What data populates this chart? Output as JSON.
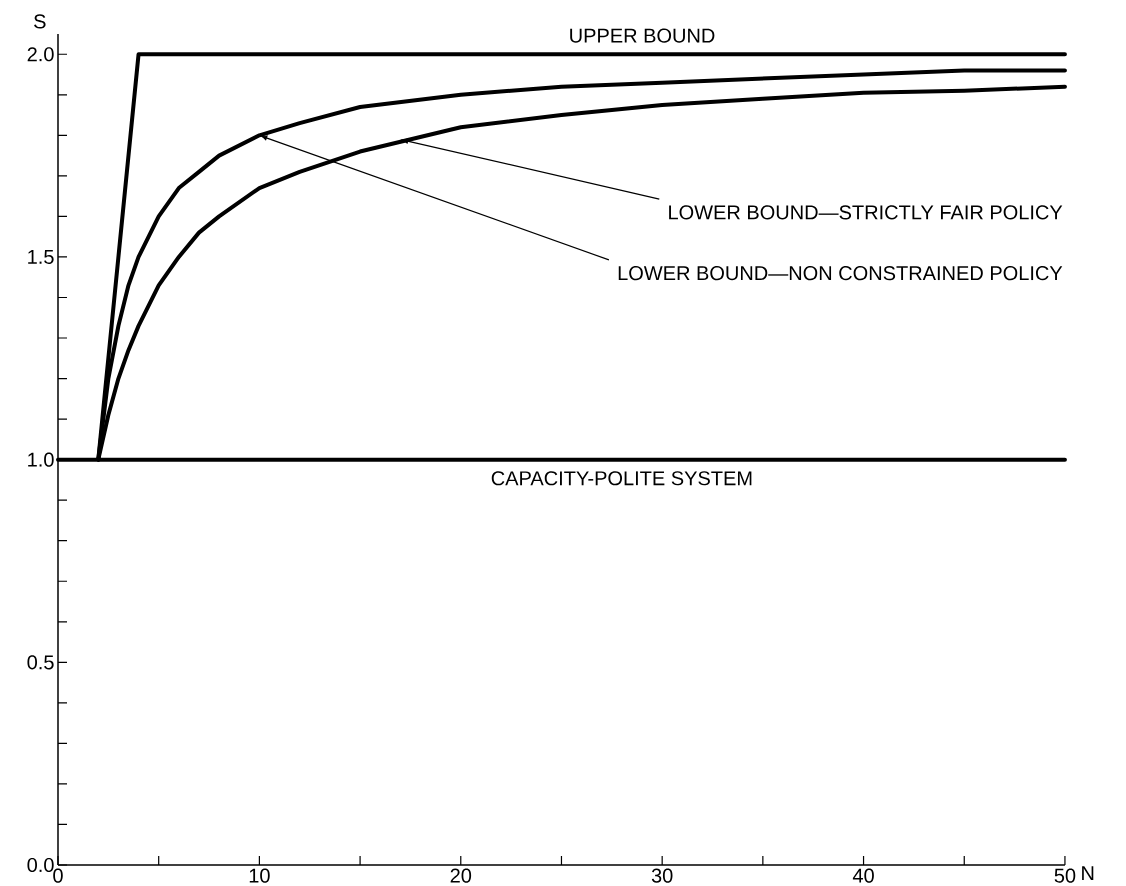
{
  "chart_data": {
    "type": "line",
    "xlabel": "N",
    "ylabel": "S",
    "xlim": [
      0,
      50
    ],
    "ylim": [
      0,
      2.05
    ],
    "xticks": [
      0,
      {
        "value": 5,
        "label": null
      },
      10,
      {
        "value": 15,
        "label": null
      },
      20,
      {
        "value": 25,
        "label": null
      },
      30,
      {
        "value": 35,
        "label": null
      },
      40,
      {
        "value": 45,
        "label": null
      },
      50
    ],
    "yticks": [
      {
        "value": 0,
        "label": "0.0"
      },
      {
        "value": 0.1,
        "label": null
      },
      {
        "value": 0.2,
        "label": null
      },
      {
        "value": 0.3,
        "label": null
      },
      {
        "value": 0.4,
        "label": null
      },
      {
        "value": 0.5,
        "label": "0.5"
      },
      {
        "value": 0.6,
        "label": null
      },
      {
        "value": 0.7,
        "label": null
      },
      {
        "value": 0.8,
        "label": null
      },
      {
        "value": 0.9,
        "label": null
      },
      {
        "value": 1.0,
        "label": "1.0"
      },
      {
        "value": 1.1,
        "label": null
      },
      {
        "value": 1.2,
        "label": null
      },
      {
        "value": 1.3,
        "label": null
      },
      {
        "value": 1.4,
        "label": null
      },
      {
        "value": 1.5,
        "label": "1.5"
      },
      {
        "value": 1.6,
        "label": null
      },
      {
        "value": 1.7,
        "label": null
      },
      {
        "value": 1.8,
        "label": null
      },
      {
        "value": 1.9,
        "label": null
      },
      {
        "value": 2.0,
        "label": "2.0"
      }
    ],
    "line_style": "solid",
    "series": [
      {
        "color": "#000000",
        "x": [
          2,
          4,
          50
        ],
        "values": [
          1.0,
          2.0,
          2.0
        ]
      },
      {
        "color": "#000000",
        "x": [
          2,
          2.5,
          3,
          3.5,
          4,
          5,
          6,
          7,
          8,
          10,
          12,
          15,
          20,
          25,
          30,
          35,
          40,
          45,
          50
        ],
        "values": [
          1.0,
          1.2,
          1.33,
          1.43,
          1.5,
          1.6,
          1.67,
          1.71,
          1.75,
          1.8,
          1.83,
          1.87,
          1.9,
          1.92,
          1.93,
          1.94,
          1.95,
          1.96,
          1.96
        ]
      },
      {
        "color": "#000000",
        "x": [
          2,
          2.5,
          3,
          3.5,
          4,
          5,
          6,
          7,
          8,
          10,
          12,
          15,
          20,
          25,
          30,
          35,
          40,
          45,
          50
        ],
        "values": [
          1.0,
          1.11,
          1.2,
          1.27,
          1.33,
          1.43,
          1.5,
          1.56,
          1.6,
          1.67,
          1.71,
          1.76,
          1.82,
          1.85,
          1.875,
          1.89,
          1.905,
          1.91,
          1.92
        ]
      },
      {
        "color": "#000000",
        "x": [
          0,
          50
        ],
        "values": [
          1.0,
          1.0
        ]
      }
    ],
    "annotations": [
      {
        "text": "UPPER BOUND",
        "x": 29,
        "y": 2.0
      },
      {
        "text": "LOWER BOUND—STRICTLY FAIR POLICY",
        "x": 17,
        "y": 1.79
      },
      {
        "text": "LOWER BOUND—NON CONSTRAINED POLICY",
        "x": 10,
        "y": 1.8
      },
      {
        "text": "CAPACITY-POLITE SYSTEM",
        "x": 28,
        "y": 1.0
      }
    ]
  }
}
